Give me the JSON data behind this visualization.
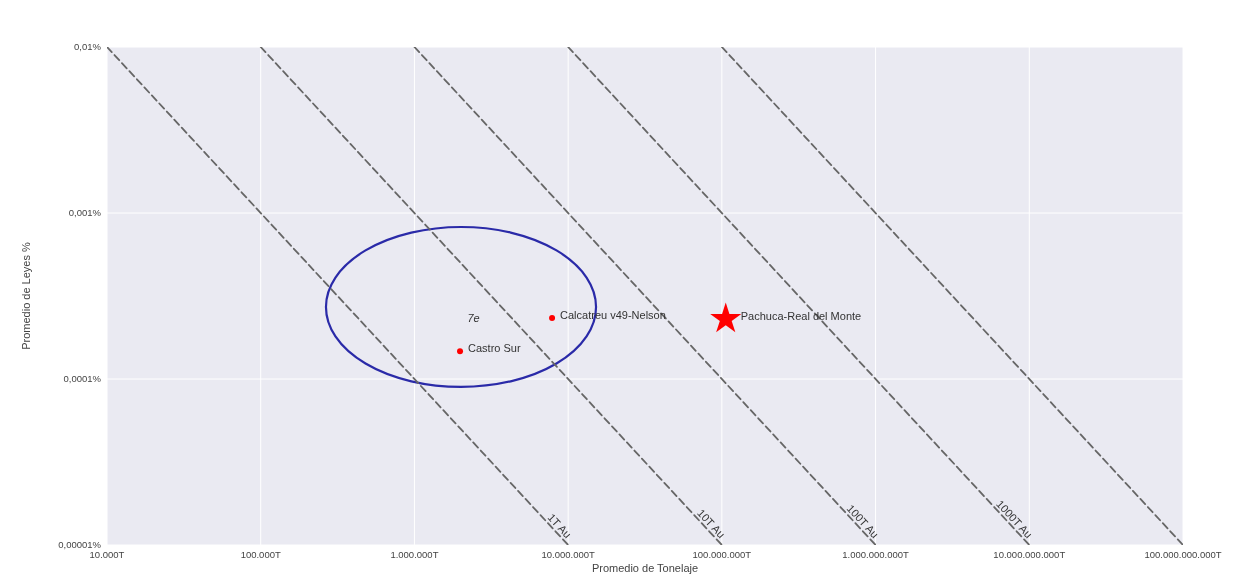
{
  "chart_data": {
    "type": "scatter",
    "xlabel": "Promedio de Tonelaje",
    "ylabel": "Promedio de Leyes %",
    "log": "xy",
    "grid": true,
    "xlim": [
      10000,
      100000000000
    ],
    "ylim": [
      1e-05,
      0.01
    ],
    "xticks": [
      {
        "value": 10000,
        "label": "10.000T"
      },
      {
        "value": 100000,
        "label": "100.000T"
      },
      {
        "value": 1000000,
        "label": "1.000.000T"
      },
      {
        "value": 10000000,
        "label": "10.000.000T"
      },
      {
        "value": 100000000,
        "label": "100.000.000T"
      },
      {
        "value": 1000000000,
        "label": "1.000.000.000T"
      },
      {
        "value": 10000000000,
        "label": "10.000.000.000T"
      },
      {
        "value": 100000000000,
        "label": "100.000.000.000T"
      }
    ],
    "yticks": [
      {
        "value": 1e-05,
        "label": "0,00001%"
      },
      {
        "value": 0.0001,
        "label": "0,0001%"
      },
      {
        "value": 0.001,
        "label": "0,001%"
      },
      {
        "value": 0.01,
        "label": "0,01%"
      }
    ],
    "series": [
      {
        "type": "line",
        "name": "1T Au",
        "color": "#666666",
        "line_style": "dashed",
        "x": [
          10000,
          10000000
        ],
        "values": [
          0.01,
          1e-05
        ]
      },
      {
        "type": "line",
        "name": "10T Au",
        "color": "#666666",
        "line_style": "dashed",
        "x": [
          100000,
          100000000
        ],
        "values": [
          0.01,
          1e-05
        ]
      },
      {
        "type": "line",
        "name": "100T Au",
        "color": "#666666",
        "line_style": "dashed",
        "x": [
          1000000,
          1000000000
        ],
        "values": [
          0.01,
          1e-05
        ]
      },
      {
        "type": "line",
        "name": "1000T Au",
        "color": "#666666",
        "line_style": "dashed",
        "x": [
          10000000,
          10000000000
        ],
        "values": [
          0.01,
          1e-05
        ]
      },
      {
        "type": "line",
        "color": "#666666",
        "line_style": "dashed",
        "x": [
          100000000,
          100000000000
        ],
        "values": [
          0.01,
          1e-05
        ]
      },
      {
        "name": "Castro Sur",
        "color": "#ff0000",
        "marker": "circle",
        "x": [
          1980000
        ],
        "values": [
          0.000147
        ]
      },
      {
        "name": "Calcatreu v49-Nelson",
        "color": "#ff0000",
        "marker": "circle",
        "x": [
          7860000
        ],
        "values": [
          0.000233
        ]
      },
      {
        "name": "Pachuca-Real del Monte",
        "color": "#ff0000",
        "marker": "star",
        "x": [
          106000000
        ],
        "values": [
          0.00023
        ]
      }
    ],
    "annotations": [
      "7e"
    ]
  }
}
